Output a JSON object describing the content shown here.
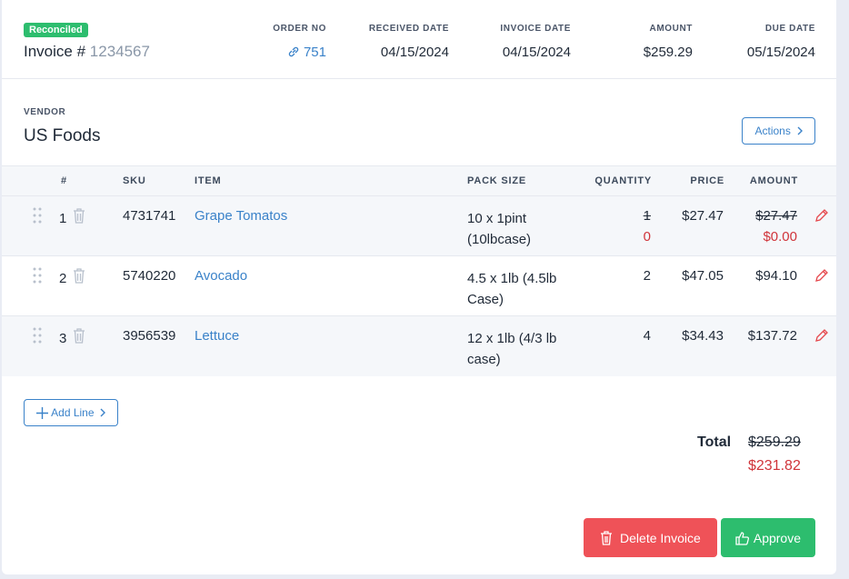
{
  "header": {
    "badge": "Reconciled",
    "invoice_label": "Invoice #",
    "invoice_number": "1234567",
    "fields": [
      {
        "label": "ORDER NO",
        "value": "751"
      },
      {
        "label": "RECEIVED DATE",
        "value": "04/15/2024"
      },
      {
        "label": "INVOICE DATE",
        "value": "04/15/2024"
      },
      {
        "label": "AMOUNT",
        "value": "$259.29"
      },
      {
        "label": "DUE DATE",
        "value": "05/15/2024"
      }
    ]
  },
  "vendor": {
    "label": "VENDOR",
    "name": "US Foods",
    "actions": "Actions"
  },
  "table": {
    "columns": [
      "#",
      "SKU",
      "ITEM",
      "PACK SIZE",
      "QUANTITY",
      "PRICE",
      "AMOUNT"
    ],
    "rows": [
      {
        "number": "1",
        "sku": "4731741",
        "item": "Grape Tomatos",
        "pack_size": "10 x 1pint (10lbcase)",
        "quantity": "1",
        "new_quantity": "0",
        "price": "$27.47",
        "amount": "$27.47",
        "new_amount": "$0.00"
      },
      {
        "number": "2",
        "sku": "5740220",
        "item": "Avocado",
        "pack_size": "4.5 x 1lb (4.5lb Case)",
        "quantity": "2",
        "price": "$47.05",
        "amount": "$94.10"
      },
      {
        "number": "3",
        "sku": "3956539",
        "item": "Lettuce",
        "pack_size": "12 x 1lb (4/3 lb case)",
        "quantity": "4",
        "price": "$34.43",
        "amount": "$137.72"
      }
    ]
  },
  "add_line": "Add Line",
  "total": {
    "label": "Total",
    "original": "$259.29",
    "adjusted": "$231.82"
  },
  "buttons": {
    "delete": "Delete Invoice",
    "approve": "Approve"
  }
}
